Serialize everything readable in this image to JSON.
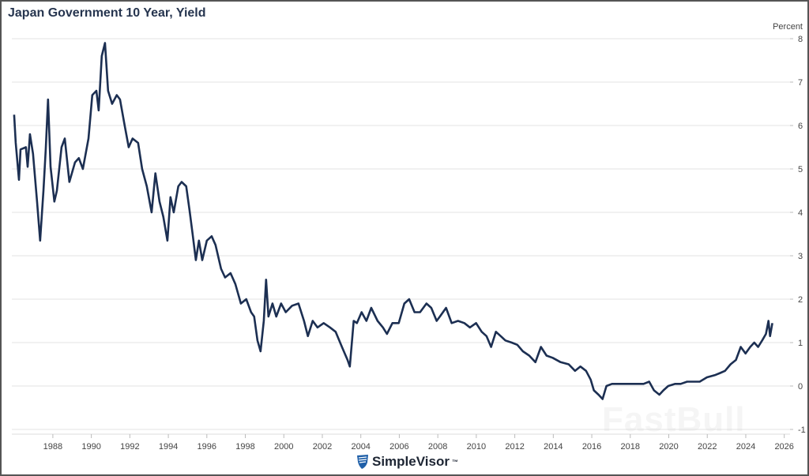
{
  "chart_data": {
    "type": "line",
    "title": "Japan Government 10 Year, Yield",
    "ylabel": "Percent",
    "xlabel": "",
    "xlim": [
      1985.87,
      2026.3
    ],
    "ylim": [
      -1,
      8
    ],
    "grid": true,
    "xticks": [
      "1988",
      "1990",
      "1992",
      "1994",
      "1996",
      "1998",
      "2000",
      "2002",
      "2004",
      "2006",
      "2008",
      "2010",
      "2012",
      "2014",
      "2016",
      "2018",
      "2020",
      "2022",
      "2024",
      "2026"
    ],
    "yticks": [
      "-1",
      "0",
      "1",
      "2",
      "3",
      "4",
      "5",
      "6",
      "7",
      "8"
    ],
    "series": [
      {
        "name": "Japan Government 10 Year Yield",
        "color": "#1c2f52",
        "points": [
          [
            1985.99,
            6.25
          ],
          [
            1986.07,
            5.6
          ],
          [
            1986.24,
            4.75
          ],
          [
            1986.32,
            5.45
          ],
          [
            1986.6,
            5.5
          ],
          [
            1986.69,
            5.05
          ],
          [
            1986.81,
            5.8
          ],
          [
            1986.97,
            5.35
          ],
          [
            1987.18,
            4.25
          ],
          [
            1987.34,
            3.35
          ],
          [
            1987.51,
            4.5
          ],
          [
            1987.63,
            5.45
          ],
          [
            1987.75,
            6.6
          ],
          [
            1987.88,
            5.05
          ],
          [
            1988.08,
            4.25
          ],
          [
            1988.21,
            4.5
          ],
          [
            1988.45,
            5.5
          ],
          [
            1988.62,
            5.7
          ],
          [
            1988.86,
            4.7
          ],
          [
            1989.15,
            5.15
          ],
          [
            1989.35,
            5.25
          ],
          [
            1989.56,
            5.0
          ],
          [
            1989.85,
            5.7
          ],
          [
            1990.05,
            6.7
          ],
          [
            1990.26,
            6.8
          ],
          [
            1990.38,
            6.35
          ],
          [
            1990.54,
            7.6
          ],
          [
            1990.71,
            7.9
          ],
          [
            1990.87,
            6.8
          ],
          [
            1991.08,
            6.5
          ],
          [
            1991.32,
            6.7
          ],
          [
            1991.49,
            6.6
          ],
          [
            1991.73,
            6.0
          ],
          [
            1991.94,
            5.5
          ],
          [
            1992.14,
            5.7
          ],
          [
            1992.43,
            5.6
          ],
          [
            1992.64,
            5.0
          ],
          [
            1992.88,
            4.6
          ],
          [
            1993.13,
            4.0
          ],
          [
            1993.33,
            4.9
          ],
          [
            1993.54,
            4.25
          ],
          [
            1993.74,
            3.9
          ],
          [
            1993.95,
            3.35
          ],
          [
            1994.11,
            4.35
          ],
          [
            1994.28,
            4.0
          ],
          [
            1994.52,
            4.6
          ],
          [
            1994.69,
            4.7
          ],
          [
            1994.93,
            4.6
          ],
          [
            1995.1,
            4.05
          ],
          [
            1995.26,
            3.5
          ],
          [
            1995.43,
            2.9
          ],
          [
            1995.59,
            3.35
          ],
          [
            1995.76,
            2.9
          ],
          [
            1996.0,
            3.35
          ],
          [
            1996.25,
            3.45
          ],
          [
            1996.45,
            3.25
          ],
          [
            1996.74,
            2.7
          ],
          [
            1996.95,
            2.5
          ],
          [
            1997.23,
            2.6
          ],
          [
            1997.48,
            2.35
          ],
          [
            1997.77,
            1.9
          ],
          [
            1998.05,
            2.0
          ],
          [
            1998.3,
            1.7
          ],
          [
            1998.46,
            1.6
          ],
          [
            1998.63,
            1.05
          ],
          [
            1998.79,
            0.8
          ],
          [
            1998.96,
            1.5
          ],
          [
            1999.08,
            2.45
          ],
          [
            1999.2,
            1.6
          ],
          [
            1999.41,
            1.9
          ],
          [
            1999.61,
            1.6
          ],
          [
            1999.86,
            1.9
          ],
          [
            2000.1,
            1.7
          ],
          [
            2000.43,
            1.85
          ],
          [
            2000.76,
            1.9
          ],
          [
            2001.05,
            1.5
          ],
          [
            2001.25,
            1.15
          ],
          [
            2001.5,
            1.5
          ],
          [
            2001.75,
            1.35
          ],
          [
            2002.07,
            1.45
          ],
          [
            2002.4,
            1.35
          ],
          [
            2002.69,
            1.25
          ],
          [
            2003.02,
            0.9
          ],
          [
            2003.31,
            0.6
          ],
          [
            2003.43,
            0.45
          ],
          [
            2003.63,
            1.5
          ],
          [
            2003.8,
            1.45
          ],
          [
            2004.04,
            1.7
          ],
          [
            2004.29,
            1.5
          ],
          [
            2004.54,
            1.8
          ],
          [
            2004.87,
            1.5
          ],
          [
            2005.15,
            1.35
          ],
          [
            2005.36,
            1.2
          ],
          [
            2005.64,
            1.45
          ],
          [
            2005.97,
            1.45
          ],
          [
            2006.26,
            1.9
          ],
          [
            2006.51,
            2.0
          ],
          [
            2006.79,
            1.7
          ],
          [
            2007.08,
            1.7
          ],
          [
            2007.41,
            1.9
          ],
          [
            2007.66,
            1.8
          ],
          [
            2007.94,
            1.5
          ],
          [
            2008.11,
            1.6
          ],
          [
            2008.43,
            1.8
          ],
          [
            2008.72,
            1.45
          ],
          [
            2009.05,
            1.5
          ],
          [
            2009.38,
            1.45
          ],
          [
            2009.67,
            1.35
          ],
          [
            2009.99,
            1.45
          ],
          [
            2010.28,
            1.25
          ],
          [
            2010.53,
            1.15
          ],
          [
            2010.77,
            0.9
          ],
          [
            2011.02,
            1.25
          ],
          [
            2011.27,
            1.15
          ],
          [
            2011.51,
            1.05
          ],
          [
            2011.84,
            1.0
          ],
          [
            2012.13,
            0.95
          ],
          [
            2012.42,
            0.8
          ],
          [
            2012.75,
            0.7
          ],
          [
            2013.07,
            0.55
          ],
          [
            2013.36,
            0.9
          ],
          [
            2013.65,
            0.7
          ],
          [
            2013.97,
            0.65
          ],
          [
            2014.38,
            0.55
          ],
          [
            2014.8,
            0.5
          ],
          [
            2015.13,
            0.35
          ],
          [
            2015.41,
            0.45
          ],
          [
            2015.7,
            0.35
          ],
          [
            2015.94,
            0.15
          ],
          [
            2016.11,
            -0.1
          ],
          [
            2016.35,
            -0.2
          ],
          [
            2016.56,
            -0.3
          ],
          [
            2016.76,
            0.0
          ],
          [
            2017.05,
            0.05
          ],
          [
            2017.46,
            0.05
          ],
          [
            2017.87,
            0.05
          ],
          [
            2018.28,
            0.05
          ],
          [
            2018.69,
            0.05
          ],
          [
            2018.98,
            0.1
          ],
          [
            2019.23,
            -0.1
          ],
          [
            2019.51,
            -0.2
          ],
          [
            2019.72,
            -0.1
          ],
          [
            2019.97,
            0.0
          ],
          [
            2020.33,
            0.05
          ],
          [
            2020.62,
            0.05
          ],
          [
            2020.95,
            0.1
          ],
          [
            2021.28,
            0.1
          ],
          [
            2021.61,
            0.1
          ],
          [
            2021.98,
            0.2
          ],
          [
            2022.39,
            0.25
          ],
          [
            2022.67,
            0.3
          ],
          [
            2022.92,
            0.35
          ],
          [
            2023.21,
            0.5
          ],
          [
            2023.49,
            0.6
          ],
          [
            2023.74,
            0.9
          ],
          [
            2023.99,
            0.75
          ],
          [
            2024.23,
            0.9
          ],
          [
            2024.44,
            1.0
          ],
          [
            2024.64,
            0.9
          ],
          [
            2024.85,
            1.05
          ],
          [
            2025.05,
            1.2
          ],
          [
            2025.18,
            1.5
          ],
          [
            2025.26,
            1.15
          ],
          [
            2025.38,
            1.45
          ]
        ]
      }
    ]
  },
  "branding": {
    "logo": "SimpleVisor",
    "trademark": "™",
    "watermark": "FastBull"
  }
}
